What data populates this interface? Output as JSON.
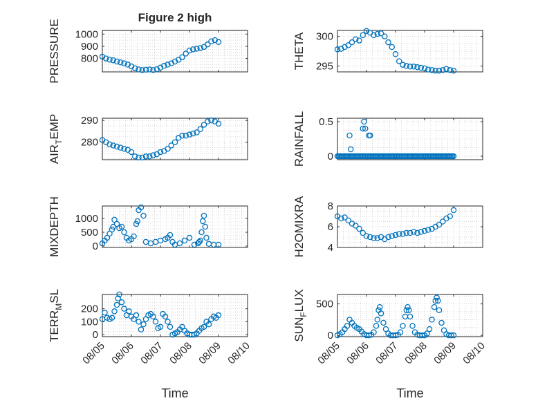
{
  "figure": {
    "title": "Figure 2 high",
    "colors": {
      "series": "#0072BD",
      "axis": "#262626",
      "grid": "#cfcfcf",
      "background": "#ffffff"
    },
    "xlabels": [
      "Time",
      "Time"
    ]
  },
  "chart_data": [
    {
      "id": "pressure",
      "type": "scatter",
      "marker": "open-circle",
      "title": "Figure 2 high",
      "ylabel": "PRESSURE",
      "xlabel": "",
      "xlim": [
        "08/05",
        "08/10"
      ],
      "ylim": [
        690,
        1030
      ],
      "xticks": [
        "08/05",
        "08/06",
        "08/07",
        "08/08",
        "08/09",
        "08/10"
      ],
      "yticks": [
        800,
        900,
        1000
      ],
      "grid": true,
      "x": [
        "08/05 00:00",
        "08/05 03:00",
        "08/05 06:00",
        "08/05 09:00",
        "08/05 12:00",
        "08/05 15:00",
        "08/05 18:00",
        "08/05 21:00",
        "08/06 00:00",
        "08/06 03:00",
        "08/06 06:00",
        "08/06 09:00",
        "08/06 12:00",
        "08/06 15:00",
        "08/06 18:00",
        "08/06 21:00",
        "08/07 00:00",
        "08/07 03:00",
        "08/07 06:00",
        "08/07 09:00",
        "08/07 12:00",
        "08/07 15:00",
        "08/07 18:00",
        "08/07 21:00",
        "08/08 00:00",
        "08/08 03:00",
        "08/08 06:00",
        "08/08 09:00",
        "08/08 12:00",
        "08/08 15:00",
        "08/08 18:00",
        "08/08 21:00",
        "08/09 00:00"
      ],
      "y": [
        815,
        800,
        790,
        785,
        775,
        768,
        760,
        750,
        735,
        720,
        710,
        705,
        708,
        710,
        705,
        712,
        725,
        740,
        750,
        760,
        775,
        790,
        810,
        840,
        865,
        875,
        880,
        885,
        895,
        915,
        940,
        950,
        935
      ]
    },
    {
      "id": "theta",
      "type": "scatter",
      "marker": "open-circle",
      "ylabel": "THETA",
      "xlabel": "",
      "xlim": [
        "08/05",
        "08/10"
      ],
      "ylim": [
        294,
        301
      ],
      "xticks": [
        "08/05",
        "08/06",
        "08/07",
        "08/08",
        "08/09",
        "08/10"
      ],
      "yticks": [
        295,
        300
      ],
      "grid": true,
      "x": [
        "08/05 00:00",
        "08/05 03:00",
        "08/05 06:00",
        "08/05 09:00",
        "08/05 12:00",
        "08/05 15:00",
        "08/05 18:00",
        "08/05 21:00",
        "08/06 00:00",
        "08/06 03:00",
        "08/06 06:00",
        "08/06 09:00",
        "08/06 12:00",
        "08/06 15:00",
        "08/06 18:00",
        "08/06 21:00",
        "08/07 00:00",
        "08/07 03:00",
        "08/07 06:00",
        "08/07 09:00",
        "08/07 12:00",
        "08/07 15:00",
        "08/07 18:00",
        "08/07 21:00",
        "08/08 00:00",
        "08/08 03:00",
        "08/08 06:00",
        "08/08 09:00",
        "08/08 12:00",
        "08/08 15:00",
        "08/08 18:00",
        "08/08 21:00",
        "08/09 00:00"
      ],
      "y": [
        297.8,
        297.9,
        298.2,
        298.5,
        299.0,
        299.5,
        299.3,
        300.2,
        300.9,
        300.6,
        300.2,
        300.4,
        300.5,
        300.0,
        299.0,
        298.2,
        297.0,
        295.8,
        295.2,
        295.0,
        294.9,
        294.9,
        294.8,
        294.7,
        294.6,
        294.4,
        294.3,
        294.2,
        294.2,
        294.3,
        294.5,
        294.3,
        294.2
      ]
    },
    {
      "id": "air_temp",
      "type": "scatter",
      "marker": "open-circle",
      "ylabel": "AIR_TEMP",
      "ylabel_parts": [
        "AIR",
        "T",
        "EMP"
      ],
      "xlabel": "",
      "xlim": [
        "08/05",
        "08/10"
      ],
      "ylim": [
        272,
        291
      ],
      "xticks": [
        "08/05",
        "08/06",
        "08/07",
        "08/08",
        "08/09",
        "08/10"
      ],
      "yticks": [
        280,
        290
      ],
      "grid": true,
      "x": [
        "08/05 00:00",
        "08/05 03:00",
        "08/05 06:00",
        "08/05 09:00",
        "08/05 12:00",
        "08/05 15:00",
        "08/05 18:00",
        "08/05 21:00",
        "08/06 00:00",
        "08/06 03:00",
        "08/06 06:00",
        "08/06 09:00",
        "08/06 12:00",
        "08/06 15:00",
        "08/06 18:00",
        "08/06 21:00",
        "08/07 00:00",
        "08/07 03:00",
        "08/07 06:00",
        "08/07 09:00",
        "08/07 12:00",
        "08/07 15:00",
        "08/07 18:00",
        "08/07 21:00",
        "08/08 00:00",
        "08/08 03:00",
        "08/08 06:00",
        "08/08 09:00",
        "08/08 12:00",
        "08/08 15:00",
        "08/08 18:00",
        "08/08 21:00",
        "08/09 00:00"
      ],
      "y": [
        281,
        280,
        279,
        278.5,
        278,
        277.5,
        277,
        276.5,
        275.5,
        273.5,
        273,
        273,
        273.5,
        273.5,
        274,
        274.5,
        275.5,
        276,
        277,
        278.5,
        280,
        282,
        283,
        283,
        283.5,
        284,
        284.5,
        286,
        288,
        289.5,
        290,
        289.5,
        288.5
      ]
    },
    {
      "id": "rainfall",
      "type": "scatter",
      "marker": "open-circle",
      "ylabel": "RAINFALL",
      "xlabel": "",
      "xlim": [
        "08/05",
        "08/10"
      ],
      "ylim": [
        -0.05,
        0.55
      ],
      "xticks": [
        "08/05",
        "08/06",
        "08/07",
        "08/08",
        "08/09",
        "08/10"
      ],
      "yticks": [
        0,
        0.5
      ],
      "ytick_labels": [
        "0",
        "0.5"
      ],
      "grid": true,
      "baseline": {
        "from": "08/05 00:00",
        "to": "08/09 00:00",
        "value": 0
      },
      "x": [
        "08/05 10:00",
        "08/05 11:00",
        "08/05 21:00",
        "08/05 22:00",
        "08/05 23:00",
        "08/06 02:00",
        "08/06 03:00"
      ],
      "y": [
        0.3,
        0.1,
        0.4,
        0.5,
        0.4,
        0.3,
        0.3
      ]
    },
    {
      "id": "mixdepth",
      "type": "scatter",
      "marker": "open-circle",
      "ylabel": "MIXDEPTH",
      "xlabel": "",
      "xlim": [
        "08/05",
        "08/10"
      ],
      "ylim": [
        -50,
        1450
      ],
      "xticks": [
        "08/05",
        "08/06",
        "08/07",
        "08/08",
        "08/09",
        "08/10"
      ],
      "yticks": [
        0,
        500,
        1000
      ],
      "grid": true,
      "x": [
        "08/05 00:00",
        "08/05 02:00",
        "08/05 04:00",
        "08/05 06:00",
        "08/05 08:00",
        "08/05 09:00",
        "08/05 10:00",
        "08/05 12:00",
        "08/05 14:00",
        "08/05 16:00",
        "08/05 18:00",
        "08/05 20:00",
        "08/05 22:00",
        "08/06 00:00",
        "08/06 02:00",
        "08/06 04:00",
        "08/06 05:00",
        "08/06 06:00",
        "08/06 08:00",
        "08/06 10:00",
        "08/06 12:00",
        "08/06 16:00",
        "08/06 20:00",
        "08/07 00:00",
        "08/07 04:00",
        "08/07 06:00",
        "08/07 08:00",
        "08/07 10:00",
        "08/07 12:00",
        "08/07 16:00",
        "08/07 20:00",
        "08/08 00:00",
        "08/08 04:00",
        "08/08 07:00",
        "08/08 08:00",
        "08/08 09:00",
        "08/08 10:00",
        "08/08 11:00",
        "08/08 12:00",
        "08/08 13:00",
        "08/08 14:00",
        "08/08 16:00",
        "08/08 20:00",
        "08/09 00:00"
      ],
      "y": [
        100,
        200,
        300,
        450,
        600,
        700,
        950,
        800,
        650,
        700,
        500,
        300,
        200,
        250,
        350,
        800,
        900,
        1300,
        1400,
        1100,
        150,
        100,
        150,
        200,
        250,
        300,
        400,
        150,
        50,
        100,
        200,
        300,
        50,
        100,
        150,
        200,
        500,
        900,
        1100,
        700,
        300,
        80,
        50,
        50
      ]
    },
    {
      "id": "h2omixra",
      "type": "scatter",
      "marker": "open-circle",
      "ylabel": "H2OMIXRA",
      "xlabel": "",
      "xlim": [
        "08/05",
        "08/10"
      ],
      "ylim": [
        4,
        8
      ],
      "xticks": [
        "08/05",
        "08/06",
        "08/07",
        "08/08",
        "08/09",
        "08/10"
      ],
      "yticks": [
        4,
        6,
        8
      ],
      "grid": true,
      "x": [
        "08/05 00:00",
        "08/05 03:00",
        "08/05 06:00",
        "08/05 09:00",
        "08/05 12:00",
        "08/05 15:00",
        "08/05 18:00",
        "08/05 21:00",
        "08/06 00:00",
        "08/06 03:00",
        "08/06 06:00",
        "08/06 09:00",
        "08/06 12:00",
        "08/06 15:00",
        "08/06 18:00",
        "08/06 21:00",
        "08/07 00:00",
        "08/07 03:00",
        "08/07 06:00",
        "08/07 09:00",
        "08/07 12:00",
        "08/07 15:00",
        "08/07 18:00",
        "08/07 21:00",
        "08/08 00:00",
        "08/08 03:00",
        "08/08 06:00",
        "08/08 09:00",
        "08/08 12:00",
        "08/08 15:00",
        "08/08 18:00",
        "08/08 21:00",
        "08/09 00:00"
      ],
      "y": [
        7.0,
        6.8,
        6.9,
        6.6,
        6.3,
        6.1,
        5.8,
        5.4,
        5.1,
        5.0,
        4.9,
        4.9,
        5.0,
        4.8,
        5.0,
        5.1,
        5.2,
        5.3,
        5.3,
        5.4,
        5.4,
        5.5,
        5.4,
        5.5,
        5.6,
        5.7,
        5.8,
        6.0,
        6.2,
        6.5,
        6.8,
        7.0,
        7.6
      ]
    },
    {
      "id": "terr_msl",
      "type": "scatter",
      "marker": "open-circle",
      "ylabel": "TERR_MSL",
      "ylabel_parts": [
        "TERR",
        "M",
        "SL"
      ],
      "xlabel": "Time",
      "xlim": [
        "08/05",
        "08/10"
      ],
      "ylim": [
        -15,
        310
      ],
      "xticks": [
        "08/05",
        "08/06",
        "08/07",
        "08/08",
        "08/09",
        "08/10"
      ],
      "yticks": [
        0,
        100,
        200
      ],
      "grid": true,
      "x": [
        "08/05 00:00",
        "08/05 02:00",
        "08/05 04:00",
        "08/05 06:00",
        "08/05 08:00",
        "08/05 10:00",
        "08/05 12:00",
        "08/05 13:00",
        "08/05 14:00",
        "08/05 16:00",
        "08/05 18:00",
        "08/05 20:00",
        "08/05 22:00",
        "08/06 00:00",
        "08/06 02:00",
        "08/06 04:00",
        "08/06 06:00",
        "08/06 08:00",
        "08/06 10:00",
        "08/06 12:00",
        "08/06 14:00",
        "08/06 16:00",
        "08/06 18:00",
        "08/06 20:00",
        "08/06 22:00",
        "08/07 00:00",
        "08/07 02:00",
        "08/07 04:00",
        "08/07 06:00",
        "08/07 08:00",
        "08/07 10:00",
        "08/07 12:00",
        "08/07 14:00",
        "08/07 16:00",
        "08/07 18:00",
        "08/07 20:00",
        "08/07 22:00",
        "08/08 00:00",
        "08/08 02:00",
        "08/08 04:00",
        "08/08 06:00",
        "08/08 08:00",
        "08/08 10:00",
        "08/08 12:00",
        "08/08 14:00",
        "08/08 16:00",
        "08/08 18:00",
        "08/08 20:00",
        "08/08 22:00",
        "08/09 00:00"
      ],
      "y": [
        120,
        170,
        130,
        120,
        130,
        180,
        230,
        280,
        310,
        250,
        200,
        150,
        180,
        140,
        120,
        150,
        100,
        40,
        80,
        120,
        150,
        160,
        140,
        100,
        50,
        60,
        160,
        140,
        100,
        60,
        0,
        10,
        20,
        40,
        60,
        30,
        10,
        0,
        0,
        0,
        10,
        30,
        50,
        60,
        100,
        80,
        120,
        140,
        130,
        150
      ]
    },
    {
      "id": "sun_flux",
      "type": "scatter",
      "marker": "open-circle",
      "ylabel": "SUN_FLUX",
      "ylabel_parts": [
        "SUN",
        "F",
        "LUX"
      ],
      "xlabel": "Time",
      "xlim": [
        "08/05",
        "08/10"
      ],
      "ylim": [
        -20,
        650
      ],
      "xticks": [
        "08/05",
        "08/06",
        "08/07",
        "08/08",
        "08/09",
        "08/10"
      ],
      "yticks": [
        0,
        500
      ],
      "grid": true,
      "x": [
        "08/05 00:00",
        "08/05 02:00",
        "08/05 04:00",
        "08/05 06:00",
        "08/05 08:00",
        "08/05 10:00",
        "08/05 12:00",
        "08/05 14:00",
        "08/05 16:00",
        "08/05 18:00",
        "08/05 20:00",
        "08/05 22:00",
        "08/06 00:00",
        "08/06 02:00",
        "08/06 04:00",
        "08/06 06:00",
        "08/06 08:00",
        "08/06 09:00",
        "08/06 10:00",
        "08/06 11:00",
        "08/06 12:00",
        "08/06 14:00",
        "08/06 16:00",
        "08/06 18:00",
        "08/06 20:00",
        "08/06 22:00",
        "08/07 00:00",
        "08/07 02:00",
        "08/07 04:00",
        "08/07 06:00",
        "08/07 08:00",
        "08/07 09:00",
        "08/07 10:00",
        "08/07 11:00",
        "08/07 12:00",
        "08/07 14:00",
        "08/07 16:00",
        "08/07 18:00",
        "08/07 20:00",
        "08/07 22:00",
        "08/08 00:00",
        "08/08 02:00",
        "08/08 04:00",
        "08/08 06:00",
        "08/08 08:00",
        "08/08 09:00",
        "08/08 10:00",
        "08/08 11:00",
        "08/08 12:00",
        "08/08 14:00",
        "08/08 16:00",
        "08/08 18:00",
        "08/08 20:00",
        "08/08 22:00",
        "08/09 00:00"
      ],
      "y": [
        0,
        20,
        50,
        100,
        150,
        250,
        200,
        150,
        120,
        100,
        60,
        20,
        0,
        0,
        10,
        50,
        150,
        250,
        400,
        450,
        350,
        200,
        100,
        30,
        0,
        0,
        0,
        10,
        50,
        150,
        300,
        400,
        450,
        400,
        300,
        150,
        50,
        10,
        0,
        0,
        0,
        30,
        100,
        250,
        450,
        550,
        600,
        550,
        400,
        200,
        80,
        20,
        0,
        0,
        0
      ]
    }
  ]
}
